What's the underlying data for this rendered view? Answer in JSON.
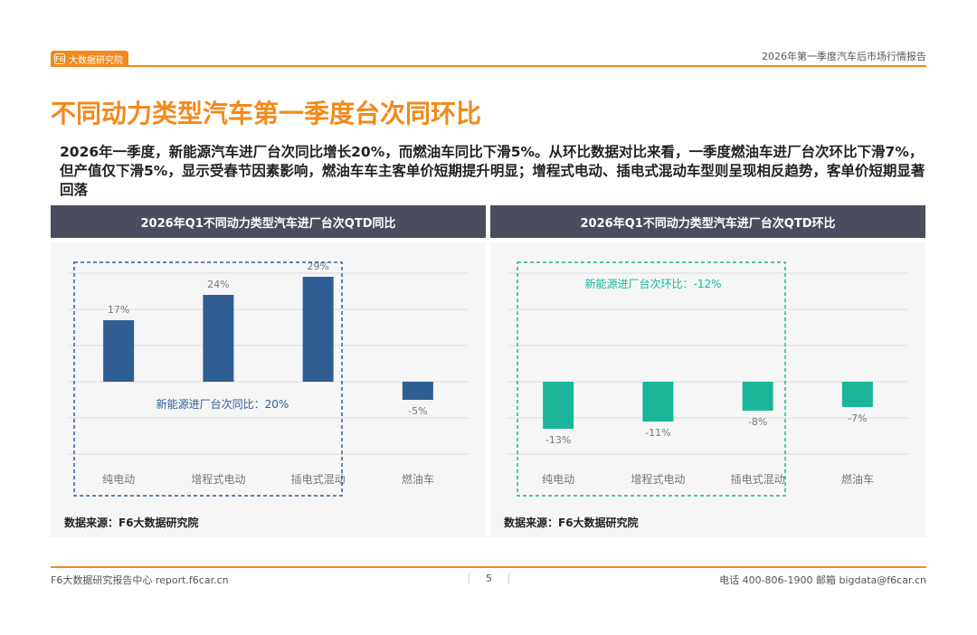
{
  "header": {
    "logo_text": "大数据研究院",
    "logo_mark": "F6",
    "report_title": "2026年第一季度汽车后市场行情报告"
  },
  "page_title": "不同动力类型汽车第一季度台次同环比",
  "summary": "2026年一季度，新能源汽车进厂台次同比增长20%，而燃油车同比下滑5%。从环比数据对比来看，一季度燃油车进厂台次环比下滑7%，但产值仅下滑5%，显示受春节因素影响，燃油车车主客单价短期提升明显；增程式电动、插电式混动车型则呈现相反趋势，客单价短期显著回落",
  "colors": {
    "accent": "#f28a1d",
    "bar_yoy": "#2f5f92",
    "bar_qoq": "#1bb69a",
    "panel_header": "#4b4d5e"
  },
  "left_panel": {
    "header": "2026年Q1不同动力类型汽车进厂台次QTD同比",
    "source": "数据来源：F6大数据研究院"
  },
  "right_panel": {
    "header": "2026年Q1不同动力类型汽车进厂台次QTD环比",
    "source": "数据来源：F6大数据研究院"
  },
  "chart_data": [
    {
      "type": "bar",
      "title": "2026年Q1不同动力类型汽车进厂台次QTD同比",
      "categories": [
        "纯电动",
        "增程式电动",
        "插电式混动",
        "燃油车"
      ],
      "values": [
        17,
        24,
        29,
        -5
      ],
      "value_labels": [
        "17%",
        "24%",
        "29%",
        "-5%"
      ],
      "ylim": [
        -25,
        32
      ],
      "grid": true,
      "annotation": "新能源进厂台次同比：20%",
      "color": "#2f5f92"
    },
    {
      "type": "bar",
      "title": "2026年Q1不同动力类型汽车进厂台次QTD环比",
      "categories": [
        "纯电动",
        "增程式电动",
        "插电式混动",
        "燃油车"
      ],
      "values": [
        -13,
        -11,
        -8,
        -7
      ],
      "value_labels": [
        "-13%",
        "-11%",
        "-8%",
        "-7%"
      ],
      "ylim": [
        -25,
        32
      ],
      "grid": true,
      "annotation": "新能源进厂台次环比：-12%",
      "color": "#1bb69a"
    }
  ],
  "footer": {
    "left": "F6大数据研究报告中心 report.f6car.cn",
    "page": "5",
    "right": "电话 400-806-1900  邮箱 bigdata@f6car.cn"
  }
}
